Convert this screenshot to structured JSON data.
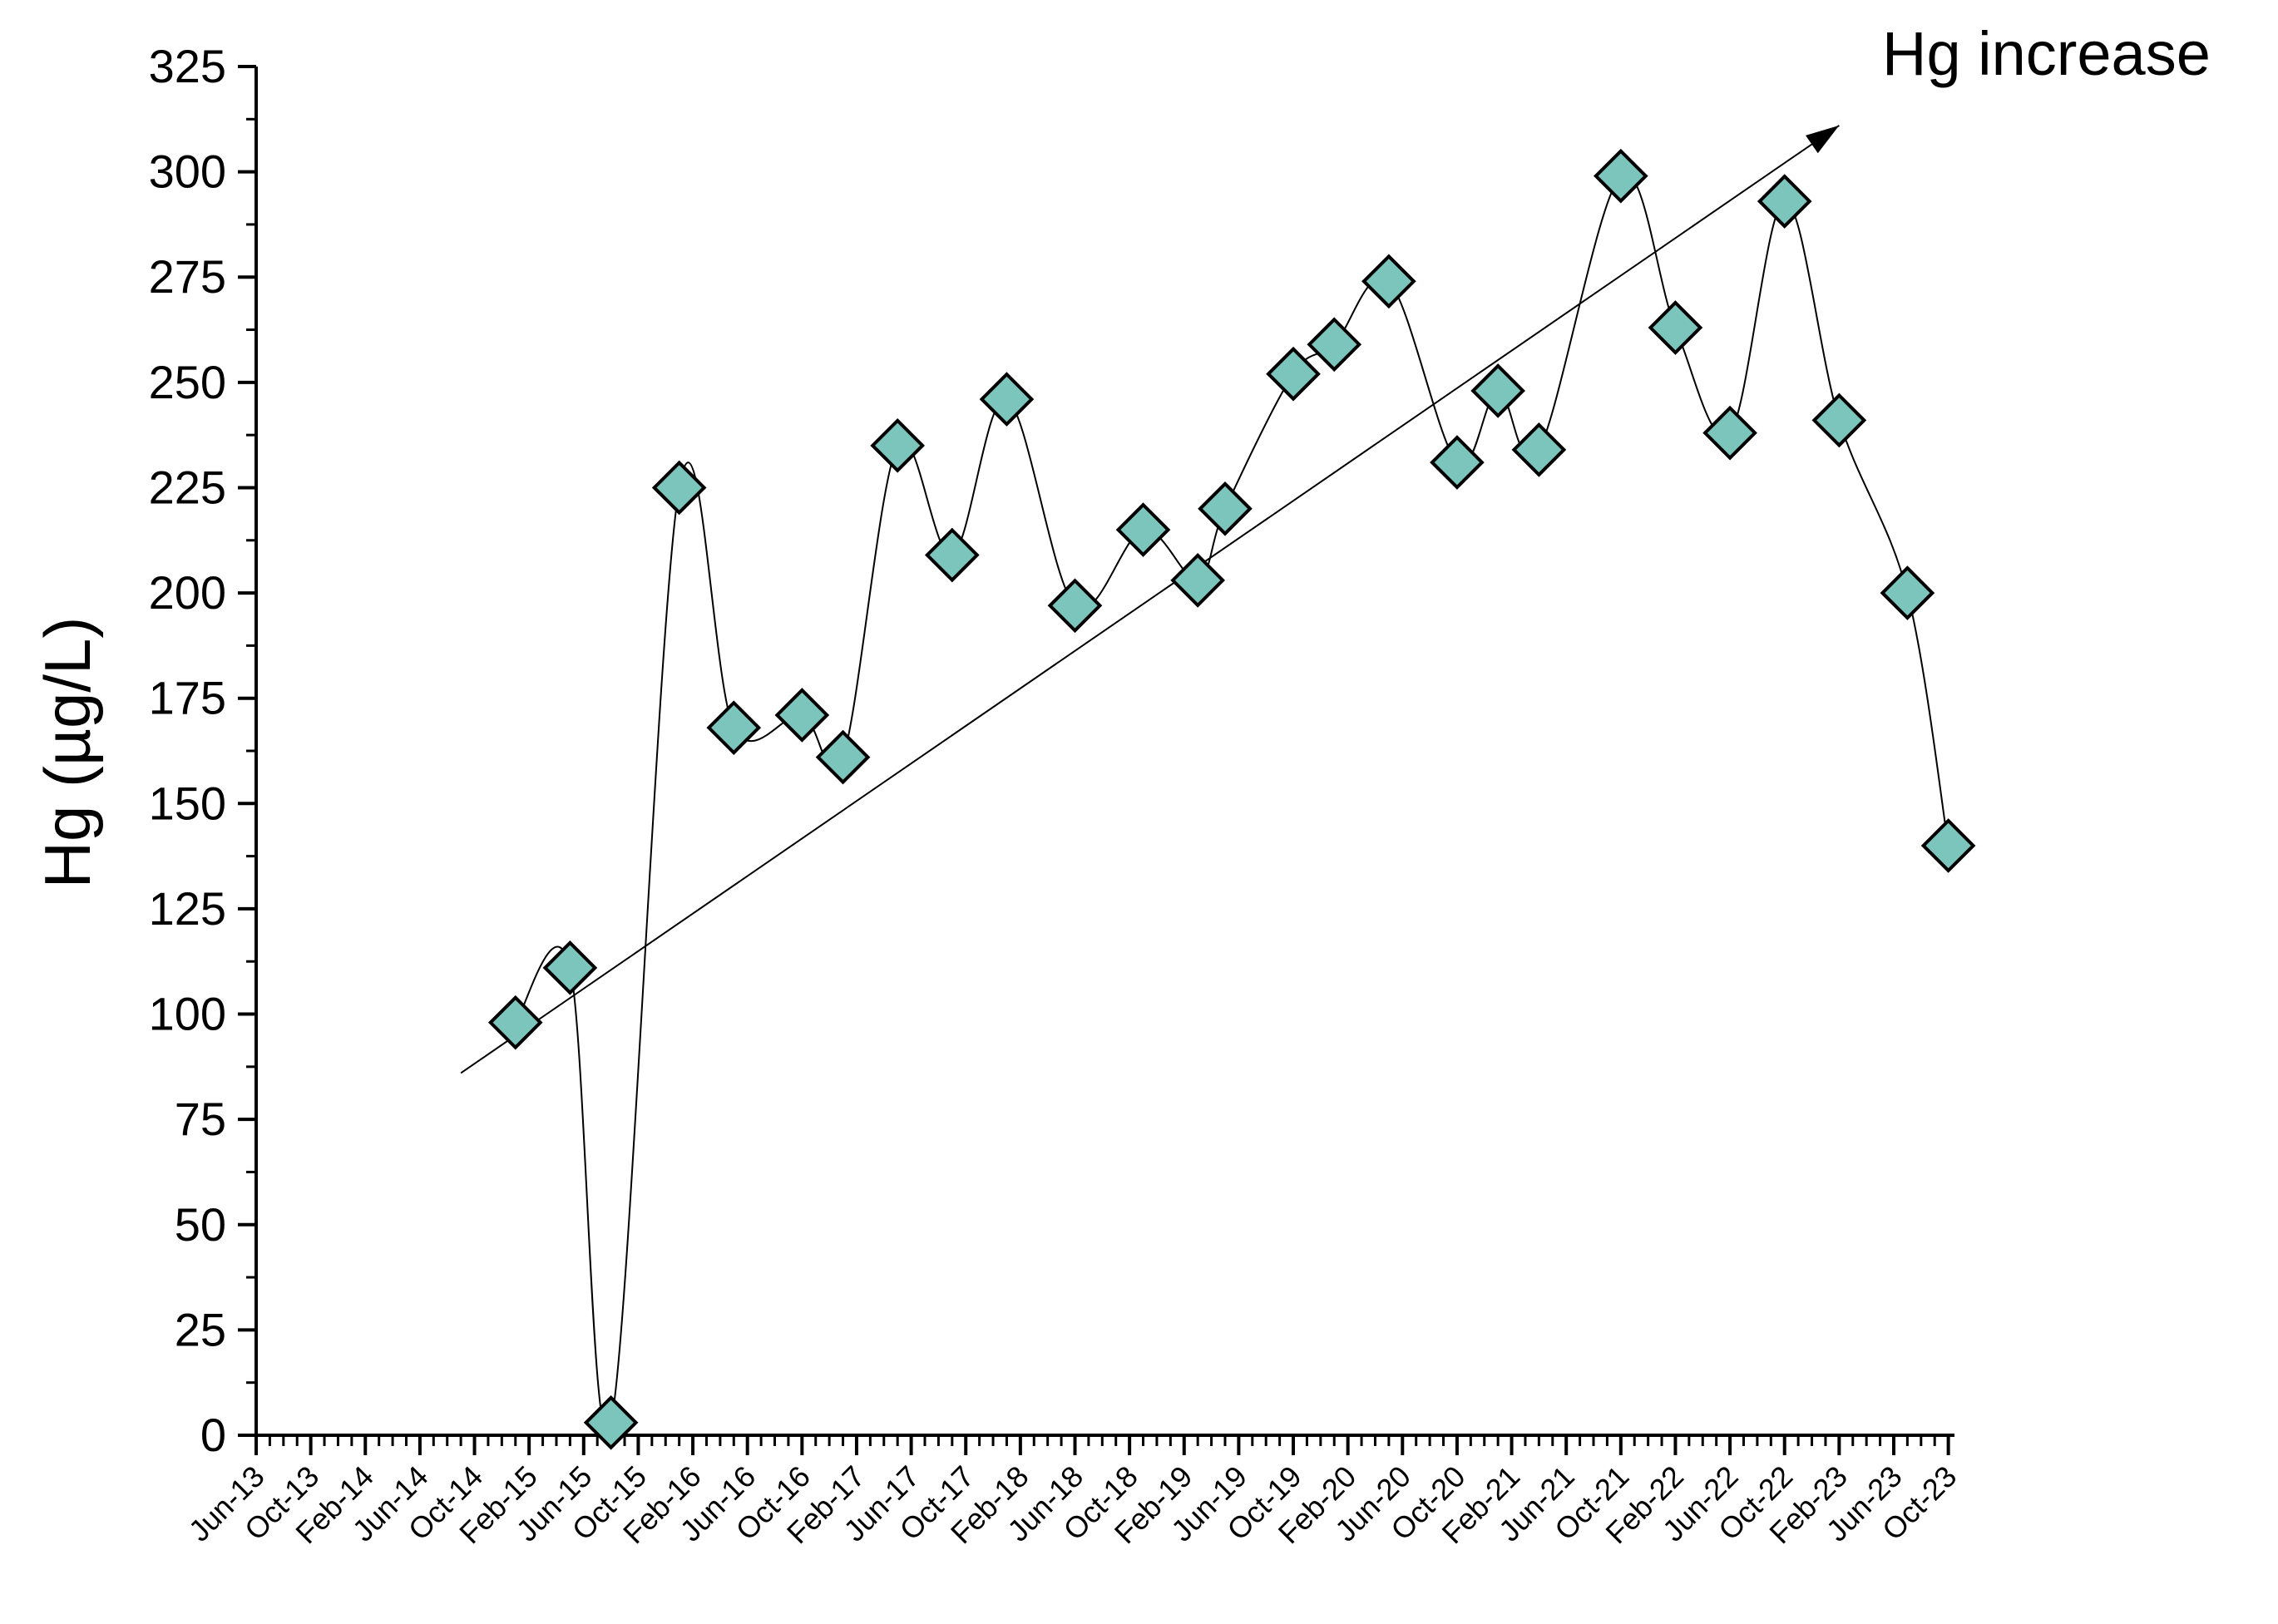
{
  "chart_data": {
    "type": "line",
    "title": "",
    "xlabel": "",
    "ylabel": "Hg (µg/L)",
    "ylim": [
      0,
      325
    ],
    "yticks": [
      0,
      25,
      50,
      75,
      100,
      125,
      150,
      175,
      200,
      225,
      250,
      275,
      300,
      325
    ],
    "xticks": [
      "Jun-13",
      "Oct-13",
      "Feb-14",
      "Jun-14",
      "Oct-14",
      "Feb-15",
      "Jun-15",
      "Oct-15",
      "Feb-16",
      "Jun-16",
      "Oct-16",
      "Feb-17",
      "Jun-17",
      "Oct-17",
      "Feb-18",
      "Jun-18",
      "Oct-18",
      "Feb-19",
      "Jun-19",
      "Oct-19",
      "Feb-20",
      "Jun-20",
      "Oct-20",
      "Feb-21",
      "Jun-21",
      "Oct-21",
      "Feb-22",
      "Jun-22",
      "Oct-22",
      "Feb-23",
      "Jun-23",
      "Oct-23"
    ],
    "grid": false,
    "marker_color": "#7cc5bd",
    "series": [
      {
        "x": [
          "2015-01",
          "2015-05",
          "2015-08",
          "2016-01",
          "2016-05",
          "2016-10",
          "2017-01",
          "2017-05",
          "2017-09",
          "2018-01",
          "2018-06",
          "2018-11",
          "2019-03",
          "2019-05",
          "2019-10",
          "2020-01",
          "2020-05",
          "2020-10",
          "2021-01",
          "2021-04",
          "2021-10",
          "2022-02",
          "2022-06",
          "2022-10",
          "2023-02",
          "2023-07",
          "2023-10"
        ],
        "values": [
          98,
          111,
          3,
          225,
          168,
          171,
          161,
          235,
          209,
          246,
          197,
          215,
          203,
          220,
          252,
          259,
          274,
          231,
          248,
          234,
          299,
          263,
          238,
          293,
          241,
          200,
          140
        ]
      }
    ],
    "trendline": {
      "x": [
        "2014-09",
        "2023-02"
      ],
      "values": [
        86,
        311
      ]
    },
    "annotations": [
      {
        "text": "Hg increase"
      }
    ]
  }
}
